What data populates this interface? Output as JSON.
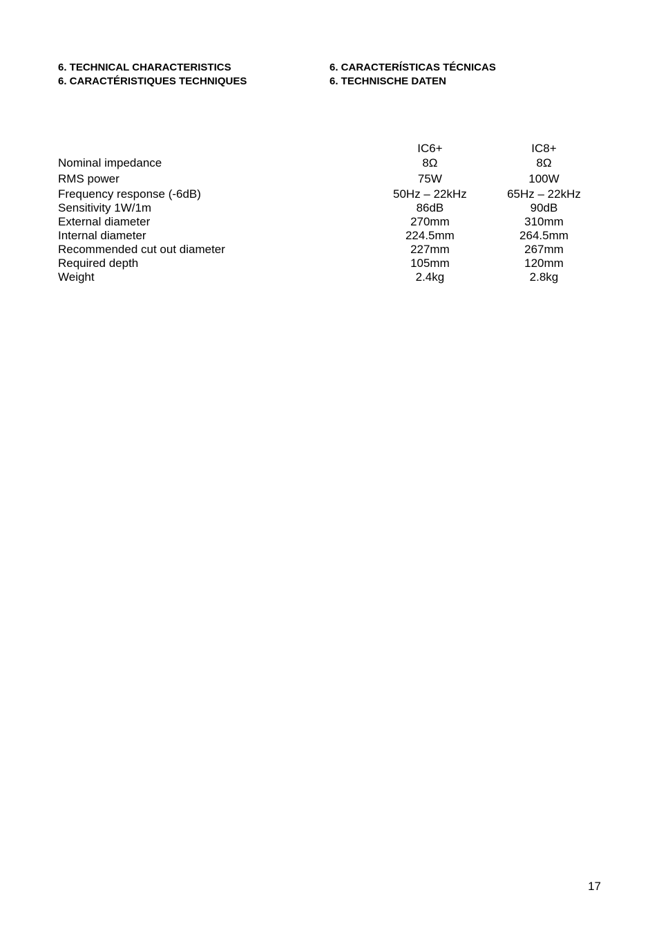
{
  "headings": {
    "left1": "6. TECHNICAL CHARACTERISTICS",
    "left2": "6. CARACTÉRISTIQUES TECHNIQUES",
    "right1": "6. CARACTERÍSTICAS TÉCNICAS",
    "right2": "6. TECHNISCHE DATEN"
  },
  "cols": {
    "a": "IC6+",
    "b": "IC8+"
  },
  "rows": {
    "nominal": {
      "label": "Nominal impedance",
      "a": "8Ω",
      "b": "8Ω"
    },
    "rms": {
      "label": "RMS power",
      "a": "75W",
      "b": "100W"
    },
    "freq": {
      "label": "Frequency response (-6dB)",
      "a": "50Hz – 22kHz",
      "b": "65Hz – 22kHz"
    },
    "sens": {
      "label": "Sensitivity 1W/1m",
      "a": "86dB",
      "b": "90dB"
    },
    "ext": {
      "label": "External diameter",
      "a": "270mm",
      "b": "310mm"
    },
    "int": {
      "label": "Internal diameter",
      "a": "224.5mm",
      "b": "264.5mm"
    },
    "cut": {
      "label": "Recommended cut out diameter",
      "a": "227mm",
      "b": "267mm"
    },
    "depth": {
      "label": "Required depth",
      "a": "105mm",
      "b": "120mm"
    },
    "weight": {
      "label": "Weight",
      "a": "2.4kg",
      "b": "2.8kg"
    }
  },
  "page_number": "17"
}
